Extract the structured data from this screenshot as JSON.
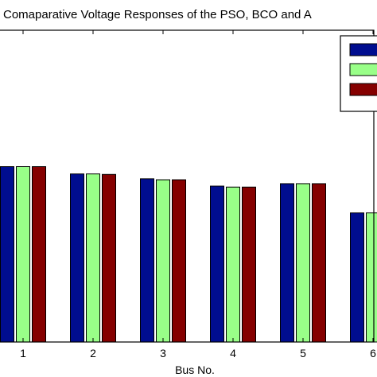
{
  "chart_data": {
    "type": "bar",
    "title": "Comaparative Voltage Responses of the PSO, BCO and A",
    "xlabel": "Bus No.",
    "ylabel": "",
    "categories": [
      "1",
      "2",
      "3",
      "4",
      "5",
      "6"
    ],
    "series": [
      {
        "color": "#000d8f",
        "values": [
          1.0,
          0.985,
          0.975,
          0.96,
          0.965,
          0.905
        ]
      },
      {
        "color": "#99ff88",
        "values": [
          1.0,
          0.985,
          0.973,
          0.958,
          0.965,
          0.905
        ]
      },
      {
        "color": "#850000",
        "values": [
          1.0,
          0.984,
          0.973,
          0.958,
          0.965,
          0.906
        ]
      }
    ],
    "ylim": [
      0.64,
      1.28
    ],
    "grid": false,
    "legend": "top-right"
  }
}
